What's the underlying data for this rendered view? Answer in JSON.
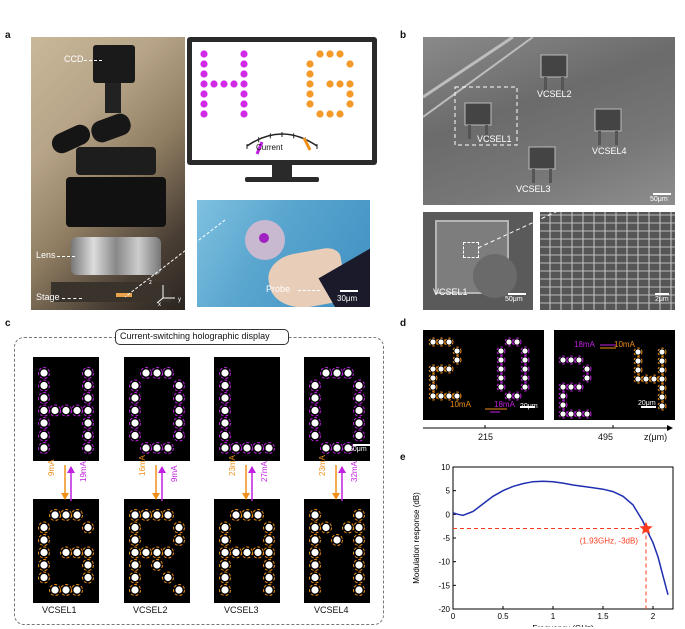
{
  "panels": {
    "a": "a",
    "b": "b",
    "c": "c",
    "d": "d",
    "e": "e"
  },
  "panel_a": {
    "labels": {
      "ccd": "CCD",
      "lens": "Lens",
      "stage": "Stage",
      "current": "Current",
      "probe": "Probe",
      "scale": "30μm",
      "axis_z": "z",
      "axis_y": "y",
      "axis_x": "x"
    },
    "monitor_letters": "HG"
  },
  "panel_b": {
    "labels": {
      "v1": "VCSEL1",
      "v2": "VCSEL2",
      "v3": "VCSEL3",
      "v4": "VCSEL4",
      "v1b": "VCSEL1",
      "scale1": "50μm",
      "scale2": "50μm",
      "scale3": "2μm"
    }
  },
  "panel_c": {
    "title": "Current-switching holographic display",
    "top_letters": [
      "H",
      "O",
      "L",
      "O"
    ],
    "bottom_letters": [
      "G",
      "R",
      "A",
      "M"
    ],
    "scale": "50μm",
    "currents": [
      {
        "low": "9mA",
        "high": "19mA"
      },
      {
        "low": "16mA",
        "high": "9mA"
      },
      {
        "low": "23mA",
        "high": "27mA"
      },
      {
        "low": "23mA",
        "high": "32mA"
      }
    ],
    "vcsel_labels": [
      "VCSEL1",
      "VCSEL2",
      "VCSEL3",
      "VCSEL4"
    ],
    "colors": {
      "magenta": "#c020e0",
      "orange": "#f0901a"
    }
  },
  "panel_d": {
    "left": {
      "label_a": "10mA",
      "label_b": "18mA",
      "scale": "20μm",
      "z": "215"
    },
    "right": {
      "label_a": "18mA",
      "label_b": "10mA",
      "scale": "20μm",
      "z": "495"
    },
    "axis": "z(μm)"
  },
  "chart_data": {
    "type": "line",
    "xlabel": "Frequency (GHz)",
    "ylabel": "Modulation response (dB)",
    "xlim": [
      0,
      2.2
    ],
    "ylim": [
      -20,
      10
    ],
    "xticks": [
      "0",
      "0.5",
      "1",
      "1.5",
      "2"
    ],
    "yticks": [
      "10",
      "5",
      "0",
      "-5",
      "-10",
      "-15",
      "-20"
    ],
    "series": [
      {
        "color": "#1f2fb0",
        "x": [
          0,
          0.05,
          0.1,
          0.2,
          0.3,
          0.4,
          0.5,
          0.6,
          0.7,
          0.8,
          0.9,
          1.0,
          1.1,
          1.2,
          1.3,
          1.4,
          1.5,
          1.6,
          1.7,
          1.8,
          1.9,
          1.93,
          2.0,
          2.05,
          2.1,
          2.15
        ],
        "y": [
          0.3,
          0,
          -0.2,
          0.6,
          2.2,
          3.8,
          5.0,
          5.9,
          6.5,
          6.9,
          7.0,
          6.9,
          6.6,
          6.2,
          5.9,
          5.6,
          5.3,
          4.8,
          3.8,
          2.0,
          -1.5,
          -3,
          -6,
          -9,
          -13,
          -17
        ]
      }
    ],
    "marker": {
      "x": 1.93,
      "y": -3,
      "label": "(1.93GHz, -3dB)",
      "color": "#ff3b1f"
    }
  }
}
